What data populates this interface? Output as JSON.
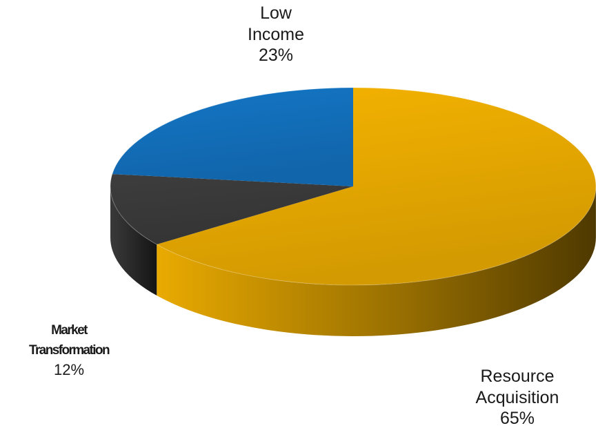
{
  "chart_data": {
    "type": "pie",
    "style": "3d",
    "slices": [
      {
        "label": "Resource\nAcquisition",
        "value": 65,
        "display": "65%",
        "color": "#f5b301"
      },
      {
        "label": "Market\nTransformation",
        "value": 12,
        "display": "12%",
        "color": "#3d3d3d"
      },
      {
        "label": "Low\nIncome",
        "value": 23,
        "display": "23%",
        "color": "#1476c6"
      }
    ],
    "legend": false
  }
}
